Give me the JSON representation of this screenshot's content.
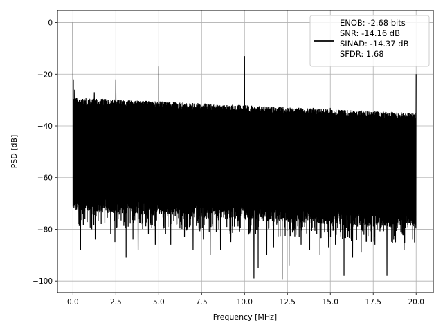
{
  "chart_data": {
    "type": "line",
    "title": "",
    "xlabel": "Frequency [MHz]",
    "ylabel": "PSD [dB]",
    "xlim": [
      -0.9,
      21.0
    ],
    "ylim": [
      -104.5,
      4.7
    ],
    "x_ticks": [
      0.0,
      2.5,
      5.0,
      7.5,
      10.0,
      12.5,
      15.0,
      17.5,
      20.0
    ],
    "x_tick_labels": [
      "0.0",
      "2.5",
      "5.0",
      "7.5",
      "10.0",
      "12.5",
      "15.0",
      "17.5",
      "20.0"
    ],
    "y_ticks": [
      0,
      -20,
      -40,
      -60,
      -80,
      -100
    ],
    "y_tick_labels": [
      "0",
      "−20",
      "−40",
      "−60",
      "−80",
      "−100"
    ],
    "grid": true,
    "legend_position": "top-right",
    "line_color": "#000000",
    "series": [
      {
        "name": "ENOB: -2.68 bits\nSNR: -14.16 dB\nSINAD: -14.37 dB\nSFDR: 1.68",
        "x_range_mhz": [
          0.0,
          20.0
        ],
        "noise_floor_top_db": [
          -31,
          -37
        ],
        "noise_floor_bottom_db": [
          -73,
          -80
        ],
        "deep_dips": [
          {
            "x": 0.35,
            "y": -78
          },
          {
            "x": 0.45,
            "y": -88
          },
          {
            "x": 0.7,
            "y": -76
          },
          {
            "x": 1.1,
            "y": -80
          },
          {
            "x": 1.3,
            "y": -84
          },
          {
            "x": 1.65,
            "y": -78
          },
          {
            "x": 2.2,
            "y": -82
          },
          {
            "x": 2.45,
            "y": -85
          },
          {
            "x": 3.1,
            "y": -91
          },
          {
            "x": 3.5,
            "y": -84
          },
          {
            "x": 3.8,
            "y": -88
          },
          {
            "x": 4.4,
            "y": -82
          },
          {
            "x": 4.8,
            "y": -86
          },
          {
            "x": 5.4,
            "y": -82
          },
          {
            "x": 5.7,
            "y": -86
          },
          {
            "x": 6.5,
            "y": -83
          },
          {
            "x": 7.0,
            "y": -88
          },
          {
            "x": 7.6,
            "y": -84
          },
          {
            "x": 8.0,
            "y": -90
          },
          {
            "x": 8.6,
            "y": -88
          },
          {
            "x": 9.2,
            "y": -85
          },
          {
            "x": 10.0,
            "y": -88
          },
          {
            "x": 10.55,
            "y": -99
          },
          {
            "x": 10.8,
            "y": -95
          },
          {
            "x": 11.3,
            "y": -90
          },
          {
            "x": 11.7,
            "y": -87
          },
          {
            "x": 12.2,
            "y": -99.5
          },
          {
            "x": 12.6,
            "y": -94
          },
          {
            "x": 13.3,
            "y": -86
          },
          {
            "x": 13.8,
            "y": -88
          },
          {
            "x": 14.4,
            "y": -90
          },
          {
            "x": 14.9,
            "y": -87
          },
          {
            "x": 15.3,
            "y": -86
          },
          {
            "x": 15.8,
            "y": -98
          },
          {
            "x": 16.3,
            "y": -91
          },
          {
            "x": 16.8,
            "y": -89
          },
          {
            "x": 17.6,
            "y": -86
          },
          {
            "x": 18.3,
            "y": -98
          },
          {
            "x": 18.8,
            "y": -85
          },
          {
            "x": 19.3,
            "y": -88
          },
          {
            "x": 19.8,
            "y": -84
          }
        ],
        "peaks": [
          {
            "x": 0.0,
            "y": 0.0
          },
          {
            "x": 0.03,
            "y": -22
          },
          {
            "x": 0.1,
            "y": -26
          },
          {
            "x": 1.25,
            "y": -27
          },
          {
            "x": 2.5,
            "y": -22
          },
          {
            "x": 5.0,
            "y": -17
          },
          {
            "x": 10.0,
            "y": -13
          },
          {
            "x": 14.0,
            "y": -33
          },
          {
            "x": 15.0,
            "y": -33
          },
          {
            "x": 20.0,
            "y": -20
          }
        ]
      }
    ]
  }
}
